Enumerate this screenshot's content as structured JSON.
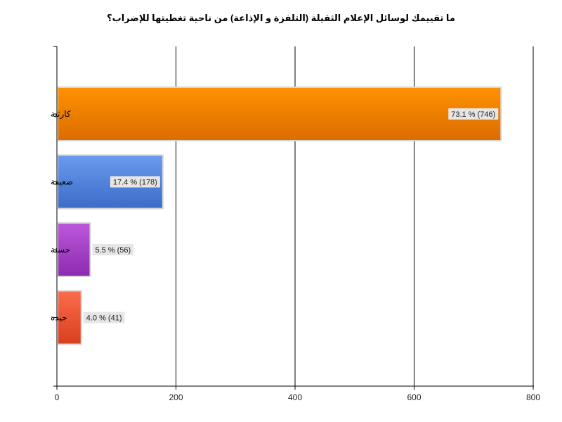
{
  "chart_data": {
    "type": "bar",
    "orientation": "horizontal",
    "title": "ما تقييمك لوسائل الإعلام الثقيلة (التلفزة و الإذاعة) من ناحية تغطيتها للإضراب؟",
    "categories": [
      "كارثية",
      "ضعيفة",
      "حسنة",
      "جيدة"
    ],
    "values": [
      746,
      178,
      56,
      41
    ],
    "data_labels": [
      "73.1 % (746)",
      "17.4 % (178)",
      "5.5 % (56)",
      "4.0 % (41)"
    ],
    "colors": [
      "#f07d00",
      "#4d7fd8",
      "#a23ec6",
      "#e8512f"
    ],
    "xlim": [
      0,
      800
    ],
    "xticks": [
      "0",
      "200",
      "400",
      "600",
      "800"
    ],
    "xtick_values": [
      0,
      200,
      400,
      600,
      800
    ],
    "grid": true,
    "legend": "none"
  }
}
